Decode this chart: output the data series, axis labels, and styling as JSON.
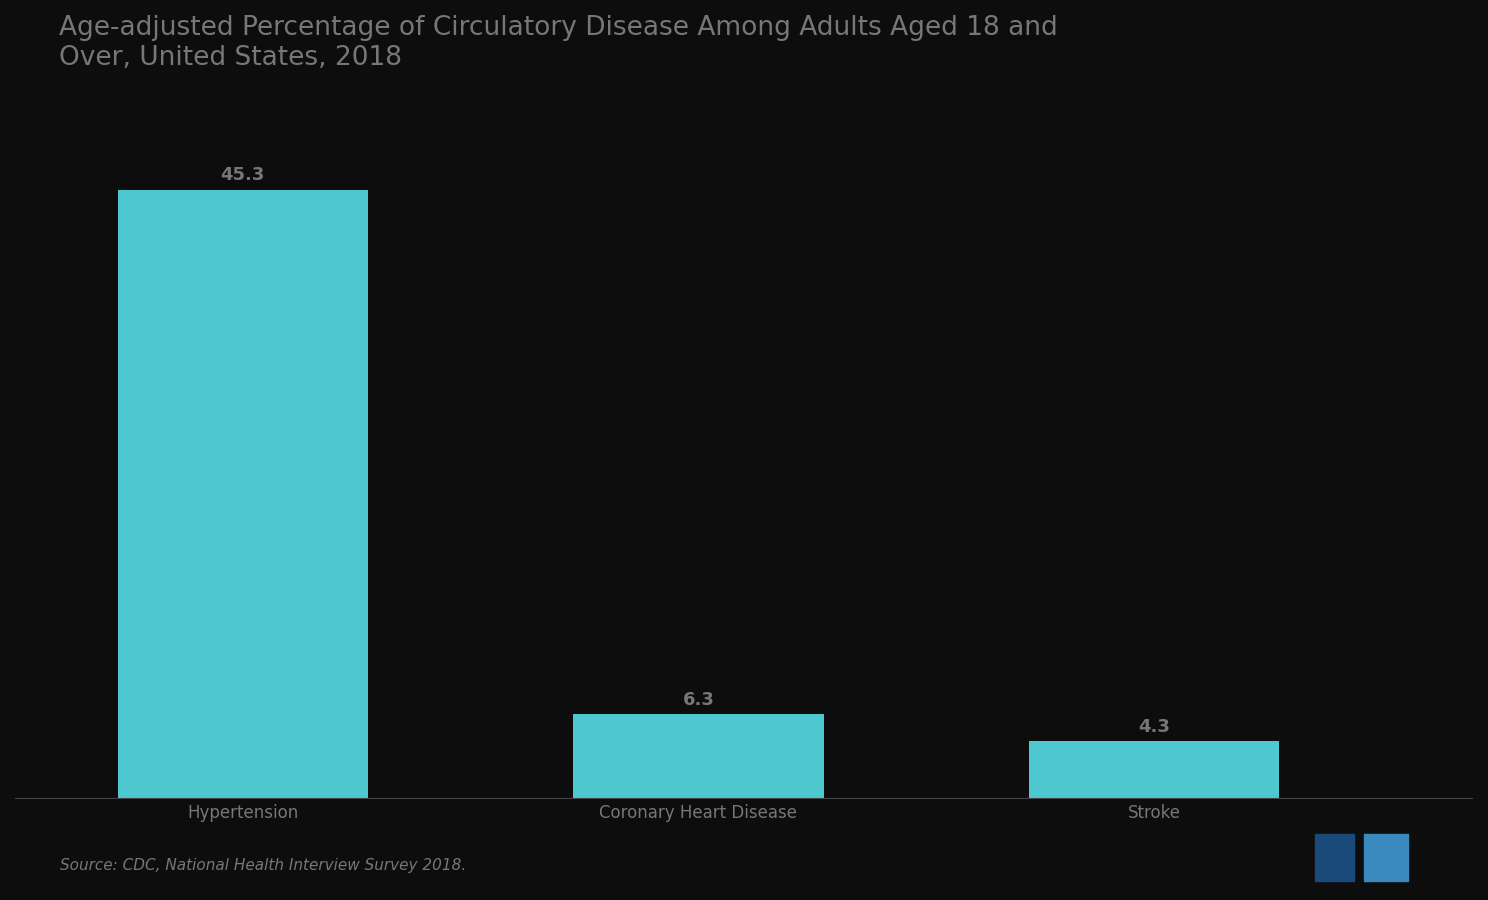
{
  "title": "Age-adjusted Percentage of Circulatory Disease Among Adults Aged 18 and\nOver, United States, 2018",
  "categories": [
    "Hypertension",
    "Coronary Heart Disease",
    "Stroke"
  ],
  "values": [
    45.3,
    6.3,
    4.3
  ],
  "bar_color": "#4DC8CE",
  "background_color": "#0d0d0d",
  "text_color": "#777777",
  "title_color": "#777777",
  "source_text": "Source: CDC, National Health Interview Survey 2018.",
  "ylim": [
    0,
    52
  ],
  "bar_width": 0.55,
  "value_labels": [
    "45.3",
    "6.3",
    "4.3"
  ],
  "title_fontsize": 19,
  "label_fontsize": 12,
  "value_fontsize": 13,
  "source_fontsize": 11,
  "x_positions": [
    1,
    2,
    3
  ]
}
